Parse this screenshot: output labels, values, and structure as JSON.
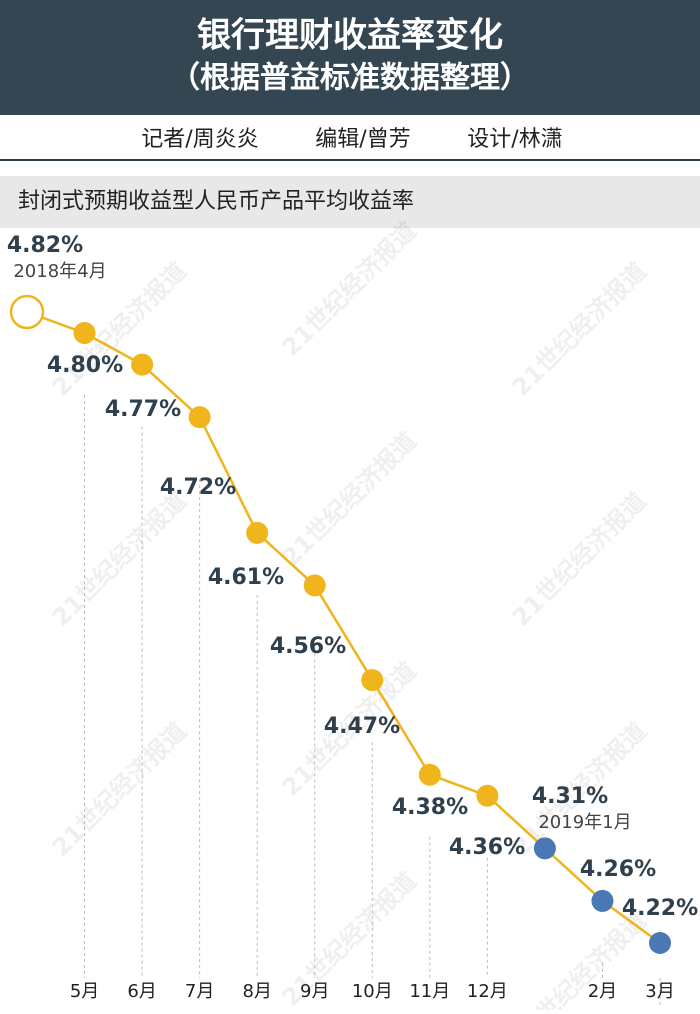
{
  "header": {
    "title": "银行理财收益率变化",
    "subtitle": "（根据普益标准数据整理）",
    "credits": [
      "记者/周炎炎",
      "编辑/曾芳",
      "设计/林潇"
    ]
  },
  "watermark": "21世纪经济报道",
  "chart_data": {
    "type": "line",
    "title": "封闭式预期收益型人民币产品平均收益率",
    "categories": [
      null,
      "5月",
      "6月",
      "7月",
      "8月",
      "9月",
      "10月",
      "11月",
      "12月",
      null,
      "2月",
      "3月"
    ],
    "series": [
      {
        "name": null,
        "color": "#f0b41c",
        "values": [
          4.82,
          4.8,
          4.77,
          4.72,
          4.61,
          4.56,
          4.47,
          4.38,
          4.36,
          4.31,
          4.26,
          4.22
        ],
        "value_labels": [
          "4.82%",
          "4.80%",
          "4.77%",
          "4.72%",
          "4.61%",
          "4.56%",
          "4.47%",
          "4.38%",
          "4.36%",
          "4.31%",
          "4.26%",
          "4.22%"
        ],
        "marker_colors": [
          "#f0b41c",
          "#f0b41c",
          "#f0b41c",
          "#f0b41c",
          "#f0b41c",
          "#f0b41c",
          "#f0b41c",
          "#f0b41c",
          "#f0b41c",
          "#4a78b5",
          "#4a78b5",
          "#4a78b5"
        ],
        "open_markers": [
          0
        ]
      }
    ],
    "annotations": [
      {
        "index": 0,
        "text": "2018年4月"
      },
      {
        "index": 9,
        "text": "2019年1月"
      }
    ]
  }
}
